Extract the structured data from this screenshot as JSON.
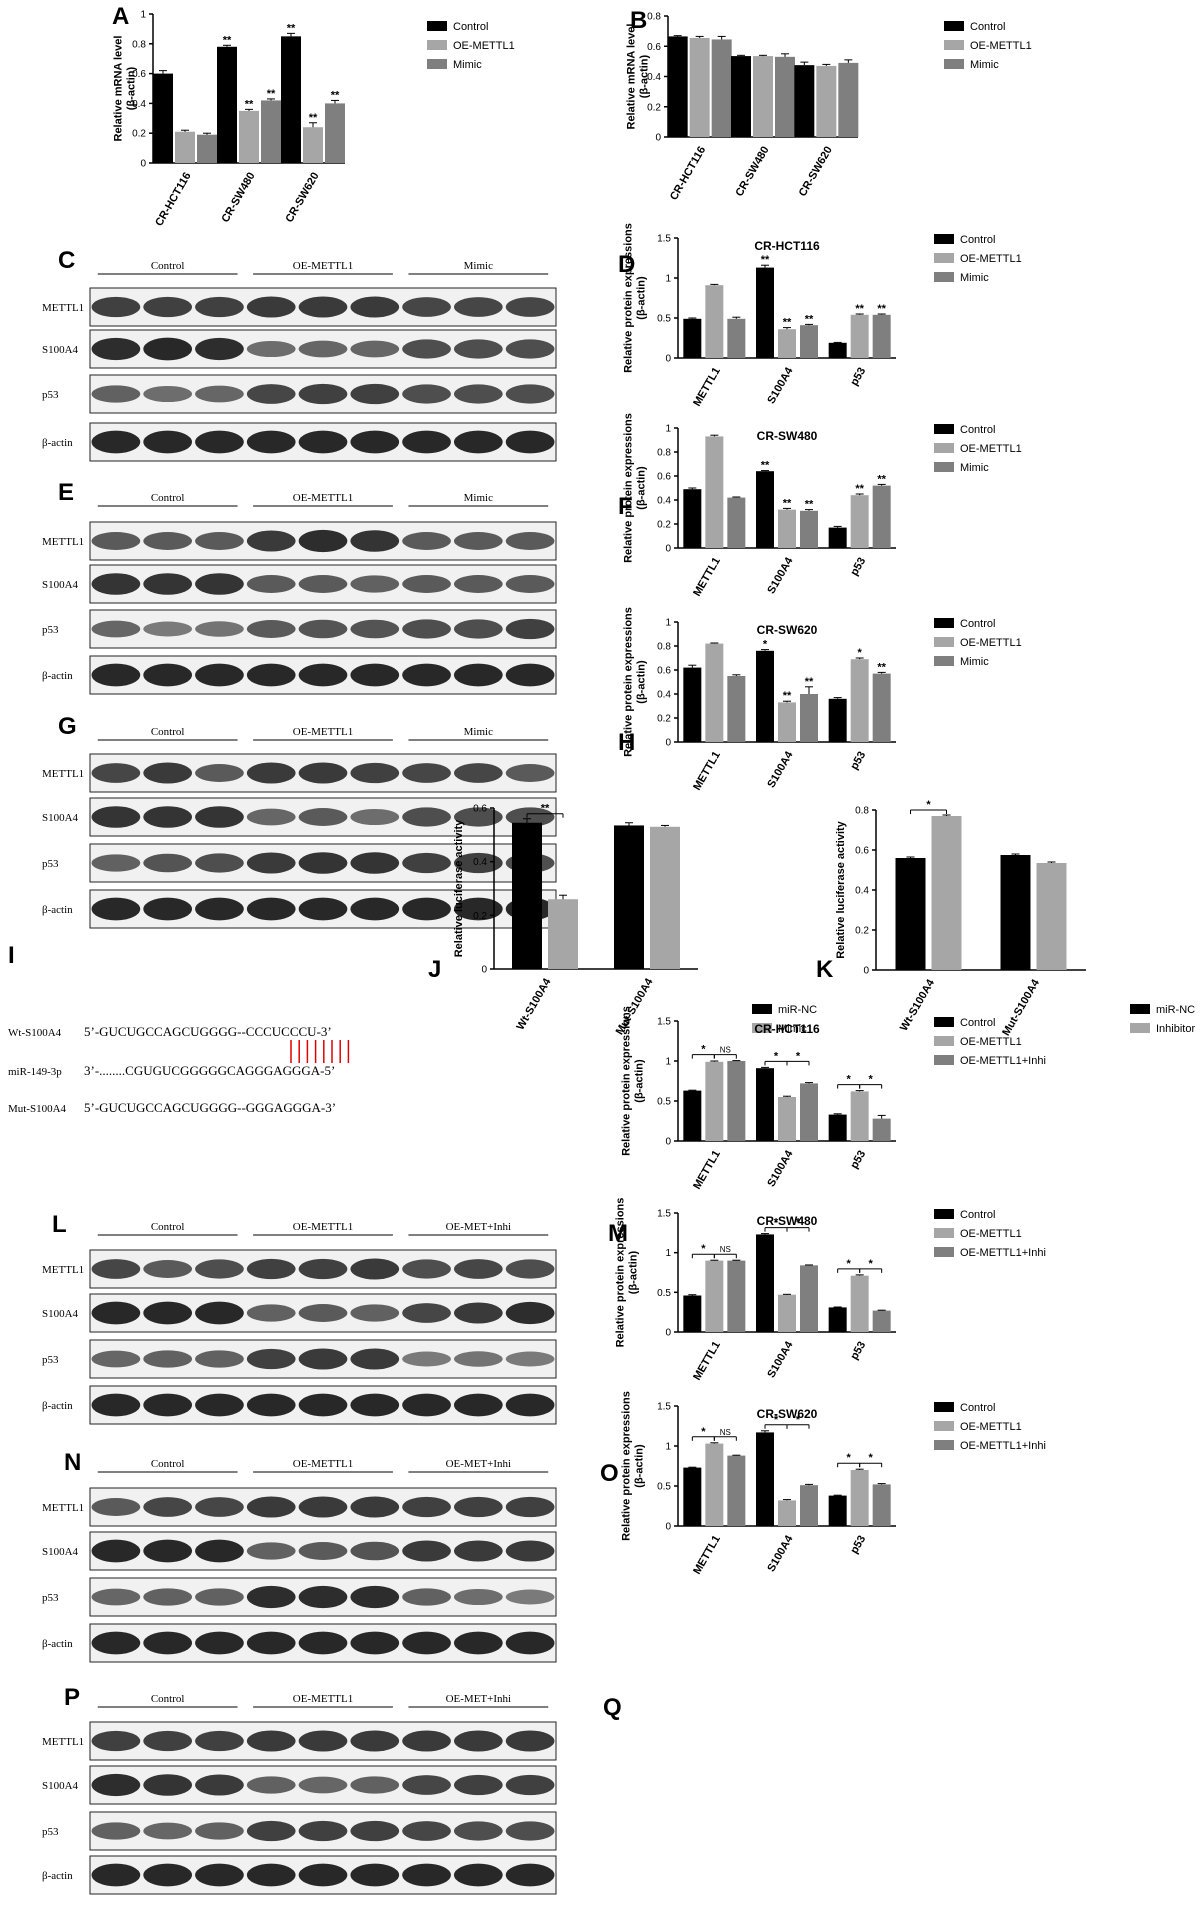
{
  "colors": {
    "control": "#000000",
    "g2": "#a6a6a6",
    "g3": "#7f7f7f",
    "blot_bg": "#f1f1f1",
    "band": "#1c1c1c",
    "pairing": "#e00000"
  },
  "panels": {
    "A": "A",
    "B": "B",
    "C": "C",
    "D": "D",
    "E": "E",
    "F": "F",
    "G": "G",
    "H": "H",
    "I": "I",
    "J": "J",
    "K": "K",
    "L": "L",
    "M": "M",
    "N": "N",
    "O": "O",
    "P": "P",
    "Q": "Q"
  },
  "blots": [
    {
      "panel": "C",
      "groups": [
        "Control",
        "OE-METTL1",
        "Mimic"
      ],
      "rows": [
        "METTL1",
        "S100A4",
        "p53",
        "β-actin"
      ]
    },
    {
      "panel": "E",
      "groups": [
        "Control",
        "OE-METTL1",
        "Mimic"
      ],
      "rows": [
        "METTL1",
        "S100A4",
        "p53",
        "β-actin"
      ]
    },
    {
      "panel": "G",
      "groups": [
        "Control",
        "OE-METTL1",
        "Mimic"
      ],
      "rows": [
        "METTL1",
        "S100A4",
        "p53",
        "β-actin"
      ]
    },
    {
      "panel": "L",
      "groups": [
        "Control",
        "OE-METTL1",
        "OE-MET+Inhi"
      ],
      "rows": [
        "METTL1",
        "S100A4",
        "p53",
        "β-actin"
      ]
    },
    {
      "panel": "N",
      "groups": [
        "Control",
        "OE-METTL1",
        "OE-MET+Inhi"
      ],
      "rows": [
        "METTL1",
        "S100A4",
        "p53",
        "β-actin"
      ]
    },
    {
      "panel": "P",
      "groups": [
        "Control",
        "OE-METTL1",
        "OE-MET+Inhi"
      ],
      "rows": [
        "METTL1",
        "S100A4",
        "p53",
        "β-actin"
      ]
    }
  ],
  "sequences": {
    "rows": [
      {
        "label": "Wt-S100A4",
        "seq": "5’-GUCUGCCAGCUGGGG--CCCUCCCU-3’"
      },
      {
        "label": "miR-149-3p",
        "seq": "3’-........CGUGUCGGGGGCAGGGAGGGA-5’"
      },
      {
        "label": "Mut-S100A4",
        "seq": "5’-GUCUGCCAGCUGGGG--GGGAGGGA-3’"
      }
    ]
  },
  "chart_data": [
    {
      "panel": "A",
      "type": "bar",
      "title": "",
      "ylabel": "Relative mRNA level\n(β-actin)",
      "ylim": [
        0,
        1.0
      ],
      "yticks": [
        0,
        0.2,
        0.4,
        0.6,
        0.8,
        1.0
      ],
      "categories": [
        "CR-HCT116",
        "CR-SW480",
        "CR-SW620"
      ],
      "series": [
        {
          "name": "Control",
          "values": [
            0.6,
            0.78,
            0.85
          ],
          "err": [
            0.02,
            0.01,
            0.02
          ]
        },
        {
          "name": "OE-METTL1",
          "values": [
            0.21,
            0.35,
            0.24
          ],
          "err": [
            0.01,
            0.01,
            0.03
          ]
        },
        {
          "name": "Mimic",
          "values": [
            0.19,
            0.42,
            0.4
          ],
          "err": [
            0.01,
            0.01,
            0.02
          ]
        }
      ],
      "sig": [
        [
          "",
          "**",
          "**"
        ],
        [
          "",
          "**",
          "**"
        ],
        [
          "",
          "**",
          "**"
        ]
      ]
    },
    {
      "panel": "B",
      "type": "bar",
      "title": "",
      "ylabel": "Relative mRNA level\n(β-actin)",
      "ylim": [
        0,
        0.8
      ],
      "yticks": [
        0,
        0.2,
        0.4,
        0.6,
        0.8
      ],
      "categories": [
        "CR-HCT116",
        "CR-SW480",
        "CR-SW620"
      ],
      "series": [
        {
          "name": "Control",
          "values": [
            0.665,
            0.535,
            0.475
          ],
          "err": [
            0.005,
            0.005,
            0.02
          ]
        },
        {
          "name": "OE-METTL1",
          "values": [
            0.655,
            0.535,
            0.47
          ],
          "err": [
            0.01,
            0.005,
            0.01
          ]
        },
        {
          "name": "Mimic",
          "values": [
            0.645,
            0.53,
            0.49
          ],
          "err": [
            0.02,
            0.02,
            0.02
          ]
        }
      ],
      "sig": [
        [
          "",
          "",
          ""
        ],
        [
          "",
          "",
          ""
        ],
        [
          "",
          "",
          ""
        ]
      ]
    },
    {
      "panel": "D",
      "type": "bar",
      "title": "CR-HCT116",
      "ylabel": "Relative protein expressions\n(β-actin)",
      "ylim": [
        0,
        1.5
      ],
      "yticks": [
        0,
        0.5,
        1.0,
        1.5
      ],
      "categories": [
        "METTL1",
        "S100A4",
        "p53"
      ],
      "series": [
        {
          "name": "Control",
          "values": [
            0.49,
            1.13,
            0.19
          ],
          "err": [
            0.01,
            0.03,
            0.005
          ]
        },
        {
          "name": "OE-METTL1",
          "values": [
            0.91,
            0.36,
            0.54
          ],
          "err": [
            0.01,
            0.02,
            0.01
          ]
        },
        {
          "name": "Mimic",
          "values": [
            0.49,
            0.41,
            0.54
          ],
          "err": [
            0.02,
            0.01,
            0.01
          ]
        }
      ],
      "sig": [
        [
          "",
          "**",
          ""
        ],
        [
          "",
          "**",
          "**"
        ],
        [
          "",
          "**",
          "**"
        ]
      ]
    },
    {
      "panel": "F",
      "type": "bar",
      "title": "CR-SW480",
      "ylabel": "Relative protein expressions\n(β-actin)",
      "ylim": [
        0,
        1.0
      ],
      "yticks": [
        0,
        0.2,
        0.4,
        0.6,
        0.8,
        1.0
      ],
      "categories": [
        "METTL1",
        "S100A4",
        "p53"
      ],
      "series": [
        {
          "name": "Control",
          "values": [
            0.49,
            0.64,
            0.17
          ],
          "err": [
            0.01,
            0.005,
            0.01
          ]
        },
        {
          "name": "OE-METTL1",
          "values": [
            0.93,
            0.32,
            0.44
          ],
          "err": [
            0.01,
            0.01,
            0.01
          ]
        },
        {
          "name": "Mimic",
          "values": [
            0.42,
            0.31,
            0.52
          ],
          "err": [
            0.005,
            0.01,
            0.01
          ]
        }
      ],
      "sig": [
        [
          "",
          "**",
          ""
        ],
        [
          "",
          "**",
          "**"
        ],
        [
          "",
          "**",
          "**"
        ]
      ]
    },
    {
      "panel": "H",
      "type": "bar",
      "title": "CR-SW620",
      "ylabel": "Relative protein expressions\n(β-actin)",
      "ylim": [
        0,
        1.0
      ],
      "yticks": [
        0,
        0.2,
        0.4,
        0.6,
        0.8,
        1.0
      ],
      "categories": [
        "METTL1",
        "S100A4",
        "p53"
      ],
      "series": [
        {
          "name": "Control",
          "values": [
            0.62,
            0.76,
            0.36
          ],
          "err": [
            0.02,
            0.01,
            0.01
          ]
        },
        {
          "name": "OE-METTL1",
          "values": [
            0.82,
            0.33,
            0.69
          ],
          "err": [
            0.005,
            0.01,
            0.01
          ]
        },
        {
          "name": "Mimic",
          "values": [
            0.55,
            0.4,
            0.57
          ],
          "err": [
            0.01,
            0.06,
            0.01
          ]
        }
      ],
      "sig": [
        [
          "",
          "*",
          ""
        ],
        [
          "",
          "**",
          "*"
        ],
        [
          "",
          "**",
          "**"
        ]
      ]
    },
    {
      "panel": "J",
      "type": "bar",
      "title": "",
      "ylabel": "Relative luciferase activity",
      "ylim": [
        0,
        0.6
      ],
      "yticks": [
        0,
        0.2,
        0.4,
        0.6
      ],
      "categories": [
        "Wt-S100A4",
        "Mut-S100A4"
      ],
      "series": [
        {
          "name": "miR-NC",
          "values": [
            0.545,
            0.535
          ],
          "err": [
            0.015,
            0.01
          ]
        },
        {
          "name": "Mimic",
          "values": [
            0.26,
            0.53
          ],
          "err": [
            0.015,
            0.005
          ]
        }
      ],
      "brackets": [
        {
          "cat": 0,
          "from": 0,
          "to": 1,
          "label": "**"
        }
      ]
    },
    {
      "panel": "K",
      "type": "bar",
      "title": "",
      "ylabel": "Relative luciferase activity",
      "ylim": [
        0,
        0.8
      ],
      "yticks": [
        0,
        0.2,
        0.4,
        0.6,
        0.8
      ],
      "categories": [
        "Wt-S100A4",
        "Mut-S100A4"
      ],
      "series": [
        {
          "name": "miR-NC",
          "values": [
            0.56,
            0.575
          ],
          "err": [
            0.005,
            0.005
          ]
        },
        {
          "name": "Inhibitor",
          "values": [
            0.77,
            0.535
          ],
          "err": [
            0.005,
            0.005
          ]
        }
      ],
      "brackets": [
        {
          "cat": 0,
          "from": 0,
          "to": 1,
          "label": "*"
        }
      ]
    },
    {
      "panel": "M",
      "type": "bar",
      "title": "CR-HCT116",
      "ylabel": "Relative protein expressions\n(β-actin)",
      "ylim": [
        0,
        1.5
      ],
      "yticks": [
        0,
        0.5,
        1.0,
        1.5
      ],
      "categories": [
        "METTL1",
        "S100A4",
        "p53"
      ],
      "series": [
        {
          "name": "Control",
          "values": [
            0.63,
            0.91,
            0.33
          ],
          "err": [
            0.005,
            0.01,
            0.01
          ]
        },
        {
          "name": "OE-METTL1",
          "values": [
            0.99,
            0.55,
            0.62
          ],
          "err": [
            0.01,
            0.01,
            0.01
          ]
        },
        {
          "name": "OE-METTL1+Inhi",
          "values": [
            1.0,
            0.72,
            0.28
          ],
          "err": [
            0.005,
            0.01,
            0.04
          ]
        }
      ],
      "brackets": [
        {
          "cat": 0,
          "from": 0,
          "to": 1,
          "label": "*"
        },
        {
          "cat": 0,
          "from": 1,
          "to": 2,
          "label": "NS"
        },
        {
          "cat": 1,
          "from": 0,
          "to": 1,
          "label": "*"
        },
        {
          "cat": 1,
          "from": 1,
          "to": 2,
          "label": "*"
        },
        {
          "cat": 2,
          "from": 0,
          "to": 1,
          "label": "*"
        },
        {
          "cat": 2,
          "from": 1,
          "to": 2,
          "label": "*"
        }
      ]
    },
    {
      "panel": "O",
      "type": "bar",
      "title": "CR-SW480",
      "ylabel": "Relative protein expressions\n(β-actin)",
      "ylim": [
        0,
        1.5
      ],
      "yticks": [
        0,
        0.5,
        1.0,
        1.5
      ],
      "categories": [
        "METTL1",
        "S100A4",
        "p53"
      ],
      "series": [
        {
          "name": "Control",
          "values": [
            0.46,
            1.23,
            0.31
          ],
          "err": [
            0.01,
            0.01,
            0.005
          ]
        },
        {
          "name": "OE-METTL1",
          "values": [
            0.9,
            0.47,
            0.71
          ],
          "err": [
            0.005,
            0.005,
            0.01
          ]
        },
        {
          "name": "OE-METTL1+Inhi",
          "values": [
            0.9,
            0.84,
            0.27
          ],
          "err": [
            0.005,
            0.005,
            0.005
          ]
        }
      ],
      "brackets": [
        {
          "cat": 0,
          "from": 0,
          "to": 1,
          "label": "*"
        },
        {
          "cat": 0,
          "from": 1,
          "to": 2,
          "label": "NS"
        },
        {
          "cat": 1,
          "from": 0,
          "to": 1,
          "label": "*"
        },
        {
          "cat": 1,
          "from": 1,
          "to": 2,
          "label": "*"
        },
        {
          "cat": 2,
          "from": 0,
          "to": 1,
          "label": "*"
        },
        {
          "cat": 2,
          "from": 1,
          "to": 2,
          "label": "*"
        }
      ]
    },
    {
      "panel": "Q",
      "type": "bar",
      "title": "CR-SW620",
      "ylabel": "Relative protein expressions\n(β-actin)",
      "ylim": [
        0,
        1.5
      ],
      "yticks": [
        0,
        0.5,
        1.0,
        1.5
      ],
      "categories": [
        "METTL1",
        "S100A4",
        "p53"
      ],
      "series": [
        {
          "name": "Control",
          "values": [
            0.73,
            1.17,
            0.38
          ],
          "err": [
            0.005,
            0.02,
            0.005
          ]
        },
        {
          "name": "OE-METTL1",
          "values": [
            1.03,
            0.32,
            0.7
          ],
          "err": [
            0.01,
            0.01,
            0.01
          ]
        },
        {
          "name": "OE-METTL1+Inhi",
          "values": [
            0.88,
            0.51,
            0.52
          ],
          "err": [
            0.005,
            0.01,
            0.01
          ]
        }
      ],
      "brackets": [
        {
          "cat": 0,
          "from": 0,
          "to": 1,
          "label": "*"
        },
        {
          "cat": 0,
          "from": 1,
          "to": 2,
          "label": "NS"
        },
        {
          "cat": 1,
          "from": 0,
          "to": 1,
          "label": "*"
        },
        {
          "cat": 1,
          "from": 1,
          "to": 2,
          "label": "*"
        },
        {
          "cat": 2,
          "from": 0,
          "to": 1,
          "label": "*"
        },
        {
          "cat": 2,
          "from": 1,
          "to": 2,
          "label": "*"
        }
      ]
    }
  ]
}
